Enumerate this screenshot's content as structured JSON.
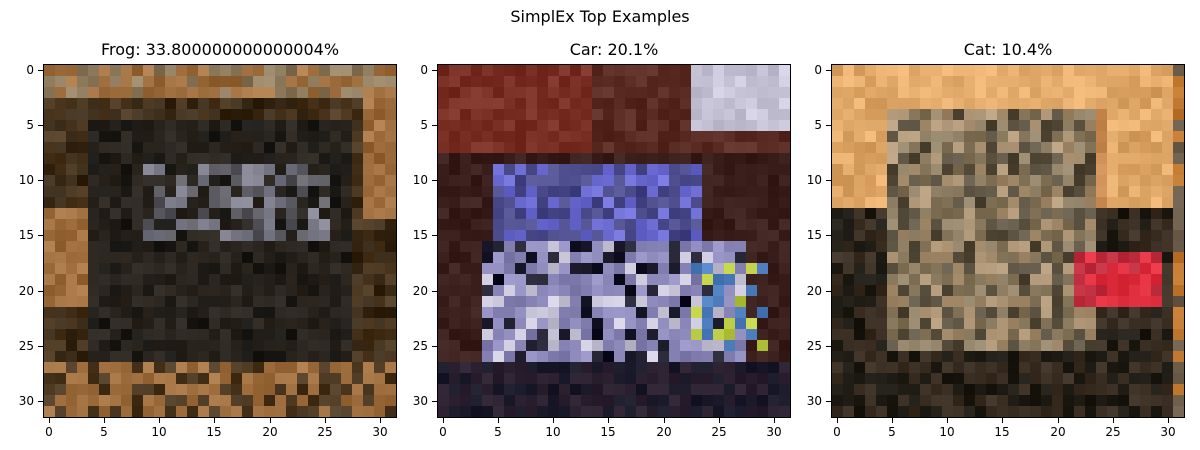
{
  "figure": {
    "suptitle": "SimplEx Top Examples"
  },
  "chart_data": [
    {
      "type": "image",
      "title": "Frog: 33.800000000000004%",
      "label": "Frog",
      "weight_percent": 33.800000000000004,
      "xlim": [
        -0.5,
        31.5
      ],
      "ylim": [
        31.5,
        -0.5
      ],
      "xticks": [
        "0",
        "5",
        "10",
        "15",
        "20",
        "25",
        "30"
      ],
      "yticks": [
        "0",
        "5",
        "10",
        "15",
        "20",
        "25",
        "30"
      ],
      "palette": [
        "#3a2a18",
        "#4b3620",
        "#2a241f",
        "#6b5a4a",
        "#8d7a5c",
        "#a07040",
        "#5a5a60",
        "#7a7a88",
        "#1c1a17"
      ],
      "accent_colors": [
        "#b8b8c8",
        "#a58a5a"
      ]
    },
    {
      "type": "image",
      "title": "Car: 20.1%",
      "label": "Car",
      "weight_percent": 20.1,
      "xlim": [
        -0.5,
        31.5
      ],
      "ylim": [
        31.5,
        -0.5
      ],
      "xticks": [
        "0",
        "5",
        "10",
        "15",
        "20",
        "25",
        "30"
      ],
      "yticks": [
        "0",
        "5",
        "10",
        "15",
        "20",
        "25",
        "30"
      ],
      "palette": [
        "#7a2f24",
        "#5a2b22",
        "#3b1f1c",
        "#2a2030",
        "#4a4a8a",
        "#6a6ad0",
        "#8a86b8",
        "#c8c4d8",
        "#1a1a2a"
      ],
      "accent_colors": [
        "#b8c840",
        "#5080c0"
      ]
    },
    {
      "type": "image",
      "title": "Cat: 10.4%",
      "label": "Cat",
      "weight_percent": 10.4,
      "xlim": [
        -0.5,
        31.5
      ],
      "ylim": [
        31.5,
        -0.5
      ],
      "xticks": [
        "0",
        "5",
        "10",
        "15",
        "20",
        "25",
        "30"
      ],
      "yticks": [
        "0",
        "5",
        "10",
        "15",
        "20",
        "25",
        "30"
      ],
      "palette": [
        "#d9a060",
        "#e8b070",
        "#c88a50",
        "#8a7a60",
        "#6a5a48",
        "#3a2e22",
        "#1e1a14",
        "#5a5040",
        "#a89070"
      ],
      "accent_colors": [
        "#e03040",
        "#c07830"
      ]
    }
  ]
}
